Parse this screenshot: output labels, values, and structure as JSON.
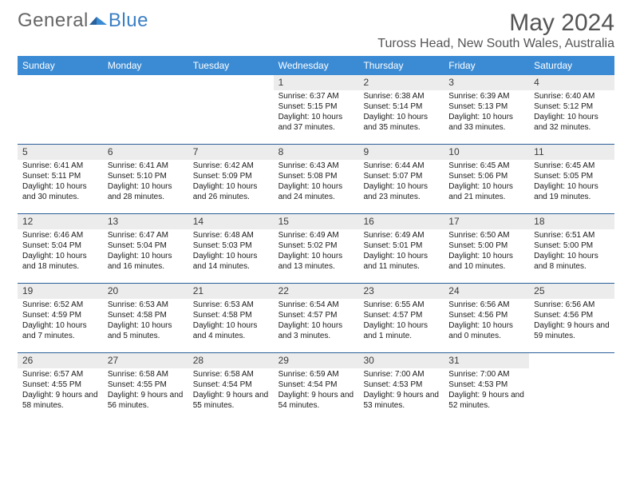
{
  "logo": {
    "part1": "General",
    "part2": "Blue"
  },
  "title": "May 2024",
  "location": "Tuross Head, New South Wales, Australia",
  "colors": {
    "header_bg": "#3b8bd4",
    "header_text": "#ffffff",
    "week_border": "#2a5f99",
    "daynum_bg": "#ececec",
    "logo_blue": "#3b7fc4",
    "text": "#1a1a1a"
  },
  "dow": [
    "Sunday",
    "Monday",
    "Tuesday",
    "Wednesday",
    "Thursday",
    "Friday",
    "Saturday"
  ],
  "layout": {
    "first_weekday_index": 3,
    "num_days": 31
  },
  "days": {
    "1": {
      "sunrise": "6:37 AM",
      "sunset": "5:15 PM",
      "daylight": "10 hours and 37 minutes."
    },
    "2": {
      "sunrise": "6:38 AM",
      "sunset": "5:14 PM",
      "daylight": "10 hours and 35 minutes."
    },
    "3": {
      "sunrise": "6:39 AM",
      "sunset": "5:13 PM",
      "daylight": "10 hours and 33 minutes."
    },
    "4": {
      "sunrise": "6:40 AM",
      "sunset": "5:12 PM",
      "daylight": "10 hours and 32 minutes."
    },
    "5": {
      "sunrise": "6:41 AM",
      "sunset": "5:11 PM",
      "daylight": "10 hours and 30 minutes."
    },
    "6": {
      "sunrise": "6:41 AM",
      "sunset": "5:10 PM",
      "daylight": "10 hours and 28 minutes."
    },
    "7": {
      "sunrise": "6:42 AM",
      "sunset": "5:09 PM",
      "daylight": "10 hours and 26 minutes."
    },
    "8": {
      "sunrise": "6:43 AM",
      "sunset": "5:08 PM",
      "daylight": "10 hours and 24 minutes."
    },
    "9": {
      "sunrise": "6:44 AM",
      "sunset": "5:07 PM",
      "daylight": "10 hours and 23 minutes."
    },
    "10": {
      "sunrise": "6:45 AM",
      "sunset": "5:06 PM",
      "daylight": "10 hours and 21 minutes."
    },
    "11": {
      "sunrise": "6:45 AM",
      "sunset": "5:05 PM",
      "daylight": "10 hours and 19 minutes."
    },
    "12": {
      "sunrise": "6:46 AM",
      "sunset": "5:04 PM",
      "daylight": "10 hours and 18 minutes."
    },
    "13": {
      "sunrise": "6:47 AM",
      "sunset": "5:04 PM",
      "daylight": "10 hours and 16 minutes."
    },
    "14": {
      "sunrise": "6:48 AM",
      "sunset": "5:03 PM",
      "daylight": "10 hours and 14 minutes."
    },
    "15": {
      "sunrise": "6:49 AM",
      "sunset": "5:02 PM",
      "daylight": "10 hours and 13 minutes."
    },
    "16": {
      "sunrise": "6:49 AM",
      "sunset": "5:01 PM",
      "daylight": "10 hours and 11 minutes."
    },
    "17": {
      "sunrise": "6:50 AM",
      "sunset": "5:00 PM",
      "daylight": "10 hours and 10 minutes."
    },
    "18": {
      "sunrise": "6:51 AM",
      "sunset": "5:00 PM",
      "daylight": "10 hours and 8 minutes."
    },
    "19": {
      "sunrise": "6:52 AM",
      "sunset": "4:59 PM",
      "daylight": "10 hours and 7 minutes."
    },
    "20": {
      "sunrise": "6:53 AM",
      "sunset": "4:58 PM",
      "daylight": "10 hours and 5 minutes."
    },
    "21": {
      "sunrise": "6:53 AM",
      "sunset": "4:58 PM",
      "daylight": "10 hours and 4 minutes."
    },
    "22": {
      "sunrise": "6:54 AM",
      "sunset": "4:57 PM",
      "daylight": "10 hours and 3 minutes."
    },
    "23": {
      "sunrise": "6:55 AM",
      "sunset": "4:57 PM",
      "daylight": "10 hours and 1 minute."
    },
    "24": {
      "sunrise": "6:56 AM",
      "sunset": "4:56 PM",
      "daylight": "10 hours and 0 minutes."
    },
    "25": {
      "sunrise": "6:56 AM",
      "sunset": "4:56 PM",
      "daylight": "9 hours and 59 minutes."
    },
    "26": {
      "sunrise": "6:57 AM",
      "sunset": "4:55 PM",
      "daylight": "9 hours and 58 minutes."
    },
    "27": {
      "sunrise": "6:58 AM",
      "sunset": "4:55 PM",
      "daylight": "9 hours and 56 minutes."
    },
    "28": {
      "sunrise": "6:58 AM",
      "sunset": "4:54 PM",
      "daylight": "9 hours and 55 minutes."
    },
    "29": {
      "sunrise": "6:59 AM",
      "sunset": "4:54 PM",
      "daylight": "9 hours and 54 minutes."
    },
    "30": {
      "sunrise": "7:00 AM",
      "sunset": "4:53 PM",
      "daylight": "9 hours and 53 minutes."
    },
    "31": {
      "sunrise": "7:00 AM",
      "sunset": "4:53 PM",
      "daylight": "9 hours and 52 minutes."
    }
  },
  "labels": {
    "sunrise": "Sunrise: ",
    "sunset": "Sunset: ",
    "daylight": "Daylight: "
  }
}
